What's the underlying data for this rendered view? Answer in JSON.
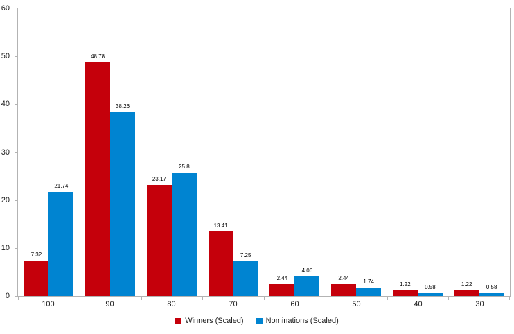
{
  "chart_data": {
    "type": "bar",
    "title": "",
    "xlabel": "",
    "ylabel": "",
    "categories": [
      "100",
      "90",
      "80",
      "70",
      "60",
      "50",
      "40",
      "30"
    ],
    "series": [
      {
        "name": "Winners (Scaled)",
        "color": "#c5000b",
        "values": [
          7.32,
          48.78,
          23.17,
          13.41,
          2.44,
          2.44,
          1.22,
          1.22
        ],
        "labels": [
          "7.32",
          "48.78",
          "23.17",
          "13.41",
          "2.44",
          "2.44",
          "1.22",
          "1.22"
        ]
      },
      {
        "name": "Nominations (Scaled)",
        "color": "#0084d1",
        "values": [
          21.74,
          38.26,
          25.8,
          7.25,
          4.06,
          1.74,
          0.58,
          0.58
        ],
        "labels": [
          "21.74",
          "38.26",
          "25.8",
          "7.25",
          "4.06",
          "1.74",
          "0.58",
          "0.58"
        ]
      }
    ],
    "ylim": [
      0,
      60
    ],
    "y_ticks": [
      0,
      10,
      20,
      30,
      40,
      50,
      60
    ],
    "grid": false,
    "legend_position": "bottom",
    "axis_color": "#b3b3b3",
    "label_color": "#1a1a1a"
  }
}
